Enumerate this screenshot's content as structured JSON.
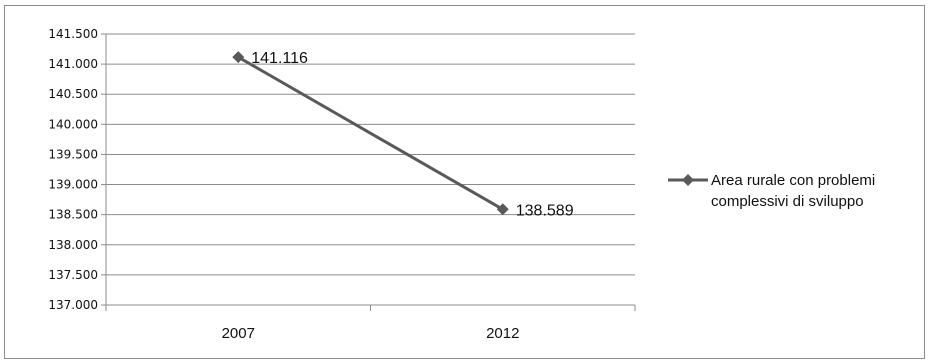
{
  "chart_data": {
    "type": "line",
    "title": "",
    "xlabel": "",
    "ylabel": "",
    "categories": [
      "2007",
      "2012"
    ],
    "series": [
      {
        "name": "Area rurale con problemi complessivi di sviluppo",
        "name_lines": [
          "Area rurale con problemi",
          "complessivi di sviluppo"
        ],
        "values": [
          141116,
          138589
        ],
        "data_labels": [
          "141.116",
          "138.589"
        ],
        "color": "#595959"
      }
    ],
    "ylim": [
      137000,
      141500
    ],
    "yticks": [
      137000,
      137500,
      138000,
      138500,
      139000,
      139500,
      140000,
      140500,
      141000,
      141500
    ],
    "ytick_labels": [
      "137.000",
      "137.500",
      "138.000",
      "138.500",
      "139.000",
      "139.500",
      "140.000",
      "140.500",
      "141.000",
      "141.500"
    ],
    "grid": true,
    "legend": "right"
  }
}
